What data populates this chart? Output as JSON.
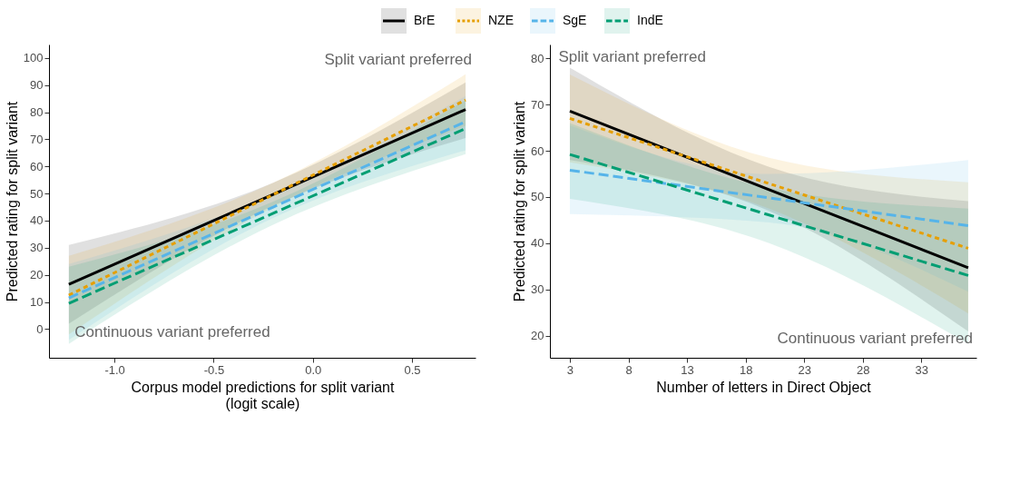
{
  "chart_data": [
    {
      "type": "line",
      "xlabel": "Corpus model predictions for split variant\n(logit scale)",
      "ylabel": "Predicted rating for split variant",
      "xlim": [
        -1.33,
        0.82
      ],
      "ylim": [
        -10.6,
        105
      ],
      "xticks": [
        {
          "value": -1.0,
          "label": "-1.0"
        },
        {
          "value": -0.5,
          "label": "-0.5"
        },
        {
          "value": 0.0,
          "label": "0.0"
        },
        {
          "value": 0.5,
          "label": "0.5"
        }
      ],
      "yticks": [
        0,
        10,
        20,
        30,
        40,
        50,
        60,
        70,
        80,
        90,
        100
      ],
      "grid": false,
      "legend": "top",
      "marker": "none",
      "annotations": [
        "Split variant preferred",
        "Continuous variant preferred"
      ],
      "series": [
        {
          "name": "BrE",
          "color": "#000000",
          "line_style": "solid",
          "x": [
            -1.23,
            -0.2,
            0.77
          ],
          "values": [
            16.5,
            49.7,
            81
          ],
          "lower": [
            2,
            45.5,
            70.5
          ],
          "upper": [
            31,
            54,
            91
          ]
        },
        {
          "name": "NZE",
          "color": "#e69f00",
          "line_style": "dotted",
          "x": [
            -1.23,
            -0.2,
            0.77
          ],
          "values": [
            12.5,
            49.6,
            84.5
          ],
          "lower": [
            -2,
            45,
            75
          ],
          "upper": [
            27,
            54,
            94
          ]
        },
        {
          "name": "SgE",
          "color": "#56b4e9",
          "line_style": "dashed",
          "x": [
            -1.23,
            -0.2,
            0.77
          ],
          "values": [
            11.5,
            45,
            76.5
          ],
          "lower": [
            -4,
            41,
            66
          ],
          "upper": [
            24,
            49.5,
            86
          ]
        },
        {
          "name": "IndE",
          "color": "#009e73",
          "line_style": "dashed",
          "x": [
            -1.23,
            -0.2,
            0.77
          ],
          "values": [
            9.5,
            42.7,
            74
          ],
          "lower": [
            -5.5,
            38.5,
            64.5
          ],
          "upper": [
            23,
            47,
            84.5
          ]
        }
      ]
    },
    {
      "type": "line",
      "xlabel": "Number of letters in Direct Object",
      "ylabel": "Predicted rating for split variant",
      "xlim": [
        1.3,
        37.7
      ],
      "ylim": [
        15.2,
        83
      ],
      "xticks": [
        3,
        8,
        13,
        18,
        23,
        28,
        33
      ],
      "yticks": [
        20,
        30,
        40,
        50,
        60,
        70,
        80
      ],
      "grid": false,
      "legend": "top",
      "marker": "none",
      "annotations": [
        "Split variant preferred",
        "Continuous variant preferred"
      ],
      "series": [
        {
          "name": "BrE",
          "color": "#000000",
          "line_style": "solid",
          "x": [
            3,
            20,
            37
          ],
          "values": [
            68.6,
            51.6,
            34.7
          ],
          "lower": [
            58,
            47,
            20.9
          ],
          "upper": [
            78,
            56.5,
            49.1
          ]
        },
        {
          "name": "NZE",
          "color": "#e69f00",
          "line_style": "dotted",
          "x": [
            3,
            20,
            37
          ],
          "values": [
            67,
            52.9,
            38.9
          ],
          "lower": [
            57.5,
            47.5,
            24.8
          ],
          "upper": [
            76.5,
            58.5,
            53.2
          ]
        },
        {
          "name": "SgE",
          "color": "#56b4e9",
          "line_style": "dashed",
          "x": [
            3,
            20,
            37
          ],
          "values": [
            55.8,
            49.8,
            43.8
          ],
          "lower": [
            46.3,
            44.5,
            29.5
          ],
          "upper": [
            65.5,
            55,
            58
          ]
        },
        {
          "name": "IndE",
          "color": "#009e73",
          "line_style": "dashed",
          "x": [
            3,
            20,
            37
          ],
          "values": [
            59.2,
            46.1,
            33
          ],
          "lower": [
            49.6,
            40,
            18.2
          ],
          "upper": [
            66,
            52,
            47.5
          ]
        }
      ]
    }
  ]
}
